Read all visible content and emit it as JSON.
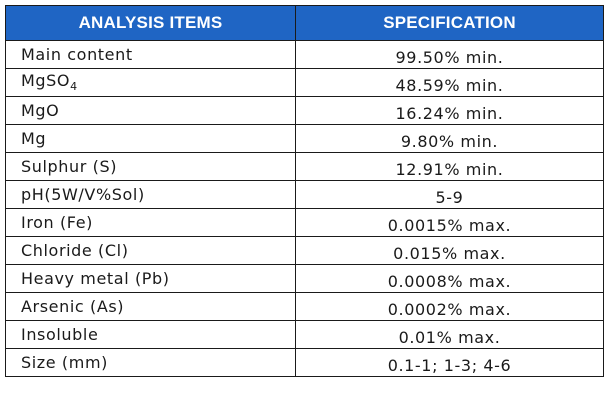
{
  "table": {
    "headers": [
      "ANALYSIS ITEMS",
      "SPECIFICATION"
    ],
    "header_color": "#1f65c4",
    "rows": [
      {
        "item": "Main content",
        "spec": "99.50% min."
      },
      {
        "item": "MgSO",
        "item_sub": "4",
        "spec": "48.59% min."
      },
      {
        "item": "MgO",
        "spec": "16.24% min."
      },
      {
        "item": "Mg",
        "spec": "9.80% min."
      },
      {
        "item": "Sulphur (S)",
        "spec": "12.91% min."
      },
      {
        "item": "pH(5W/V%Sol)",
        "spec": "5-9"
      },
      {
        "item": "Iron (Fe)",
        "spec": "0.0015% max."
      },
      {
        "item": "Chloride (Cl)",
        "spec": "0.015% max."
      },
      {
        "item": "Heavy metal (Pb)",
        "spec": "0.0008% max."
      },
      {
        "item": "Arsenic (As)",
        "spec": "0.0002% max."
      },
      {
        "item": "Insoluble",
        "spec": "0.01% max."
      },
      {
        "item": "Size (mm)",
        "spec": "0.1-1; 1-3; 4-6"
      }
    ]
  }
}
